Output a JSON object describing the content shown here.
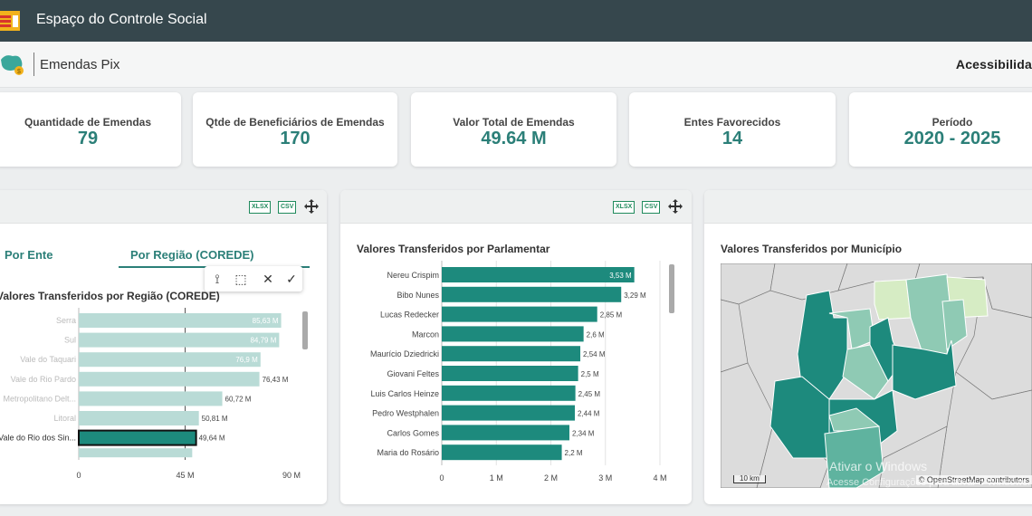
{
  "header": {
    "title": "Espaço do Controle Social"
  },
  "subheader": {
    "name": "Emendas Pix",
    "accessibility": "Acessibilida"
  },
  "kpis": [
    {
      "label": "Quantidade de Emendas",
      "value": "79"
    },
    {
      "label": "Qtde de Beneficiários de Emendas",
      "value": "170"
    },
    {
      "label": "Valor Total de Emendas",
      "value": "49.64 M"
    },
    {
      "label": "Entes Favorecidos",
      "value": "14"
    },
    {
      "label": "Período",
      "value": "2020 - 2025"
    }
  ],
  "export": {
    "xlsx": "XLSX",
    "csv": "CSV"
  },
  "panel_regiao": {
    "tab_ente": "Por Ente",
    "tab_regiao": "Por Região (COREDE)",
    "title": "Valores Transferidos por Região (COREDE)"
  },
  "panel_parlamentar": {
    "title": "Valores Transferidos por Parlamentar"
  },
  "panel_municipio": {
    "title": "Valores Transferidos por Município"
  },
  "map": {
    "scale": "10 km",
    "attribution": "© OpenStreetMap contributors"
  },
  "watermark": {
    "line1": "Ativar o Windows",
    "line2": "Acesse Configurações para ativar o Windows."
  },
  "colors": {
    "teal": "#1d8a7d",
    "teal_light": "#b9dbd6",
    "header": "#36474d",
    "accent": "#2b7f78"
  },
  "chart_data": [
    {
      "type": "bar",
      "orientation": "horizontal",
      "title": "Valores Transferidos por Região (COREDE)",
      "categories": [
        "Serra",
        "Sul",
        "Vale do Taquari",
        "Vale do Rio Pardo",
        "Metropolitano Delt...",
        "Litoral",
        "Vale do Rio dos Sin..."
      ],
      "values": [
        85.63,
        84.79,
        76.9,
        76.43,
        60.72,
        50.81,
        49.64
      ],
      "value_labels": [
        "85,63 M",
        "84,79 M",
        "76,9 M",
        "76,43 M",
        "60,72 M",
        "50,81 M",
        "49,64 M"
      ],
      "selected": "Vale do Rio dos Sin...",
      "xlim": [
        0,
        90
      ],
      "ticks": [
        0,
        45,
        90
      ],
      "tick_labels": [
        "0",
        "45 M",
        "90 M"
      ]
    },
    {
      "type": "bar",
      "orientation": "horizontal",
      "title": "Valores Transferidos por Parlamentar",
      "categories": [
        "Nereu Crispim",
        "Bibo Nunes",
        "Lucas Redecker",
        "Marcon",
        "Maurício Dziedricki",
        "Giovani Feltes",
        "Luis Carlos Heinze",
        "Pedro Westphalen",
        "Carlos Gomes",
        "Maria do Rosário"
      ],
      "values": [
        3.53,
        3.29,
        2.85,
        2.6,
        2.54,
        2.5,
        2.45,
        2.44,
        2.34,
        2.2
      ],
      "value_labels": [
        "3,53 M",
        "3,29 M",
        "2,85 M",
        "2,6 M",
        "2,54 M",
        "2,5 M",
        "2,45 M",
        "2,44 M",
        "2,34 M",
        "2,2 M"
      ],
      "xlim": [
        0,
        4
      ],
      "ticks": [
        0,
        1,
        2,
        3,
        4
      ],
      "tick_labels": [
        "0",
        "1 M",
        "2 M",
        "3 M",
        "4 M"
      ]
    }
  ]
}
